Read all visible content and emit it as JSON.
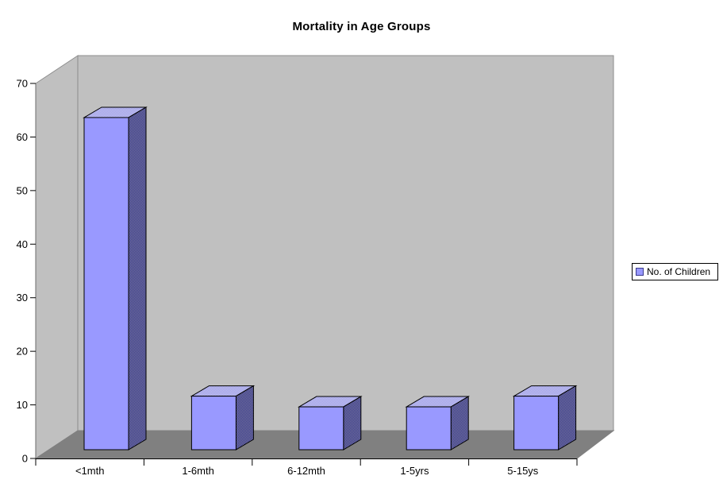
{
  "chart_data": {
    "type": "bar",
    "projection": "3d",
    "title": "Mortality in Age Groups",
    "categories": [
      "<1mth",
      "1-6mth",
      "6-12mth",
      "1-5yrs",
      "5-15ys"
    ],
    "series": [
      {
        "name": "No. of Children",
        "values": [
          62,
          10,
          8,
          8,
          10
        ]
      }
    ],
    "xlabel": "",
    "ylabel": "",
    "ylim": [
      0,
      70
    ],
    "yticks": [
      0,
      10,
      20,
      30,
      40,
      50,
      60,
      70
    ],
    "grid": false,
    "legend_position": "right",
    "colors": {
      "bar_front": "#9999FF",
      "bar_side_dither": [
        "#333399",
        "#7d7d90"
      ],
      "bar_top_dither": [
        "#9999FF",
        "#C9C9D8"
      ],
      "wall": "#C0C0C0",
      "floor": "#808080",
      "edge": "#8c8c8c",
      "axis_line": "#6b6b6b",
      "tick": "#000000",
      "text": "#000000",
      "background": "#FFFFFF"
    }
  },
  "legend": {
    "label": "No. of Children",
    "swatch_color": "#9999FF"
  }
}
